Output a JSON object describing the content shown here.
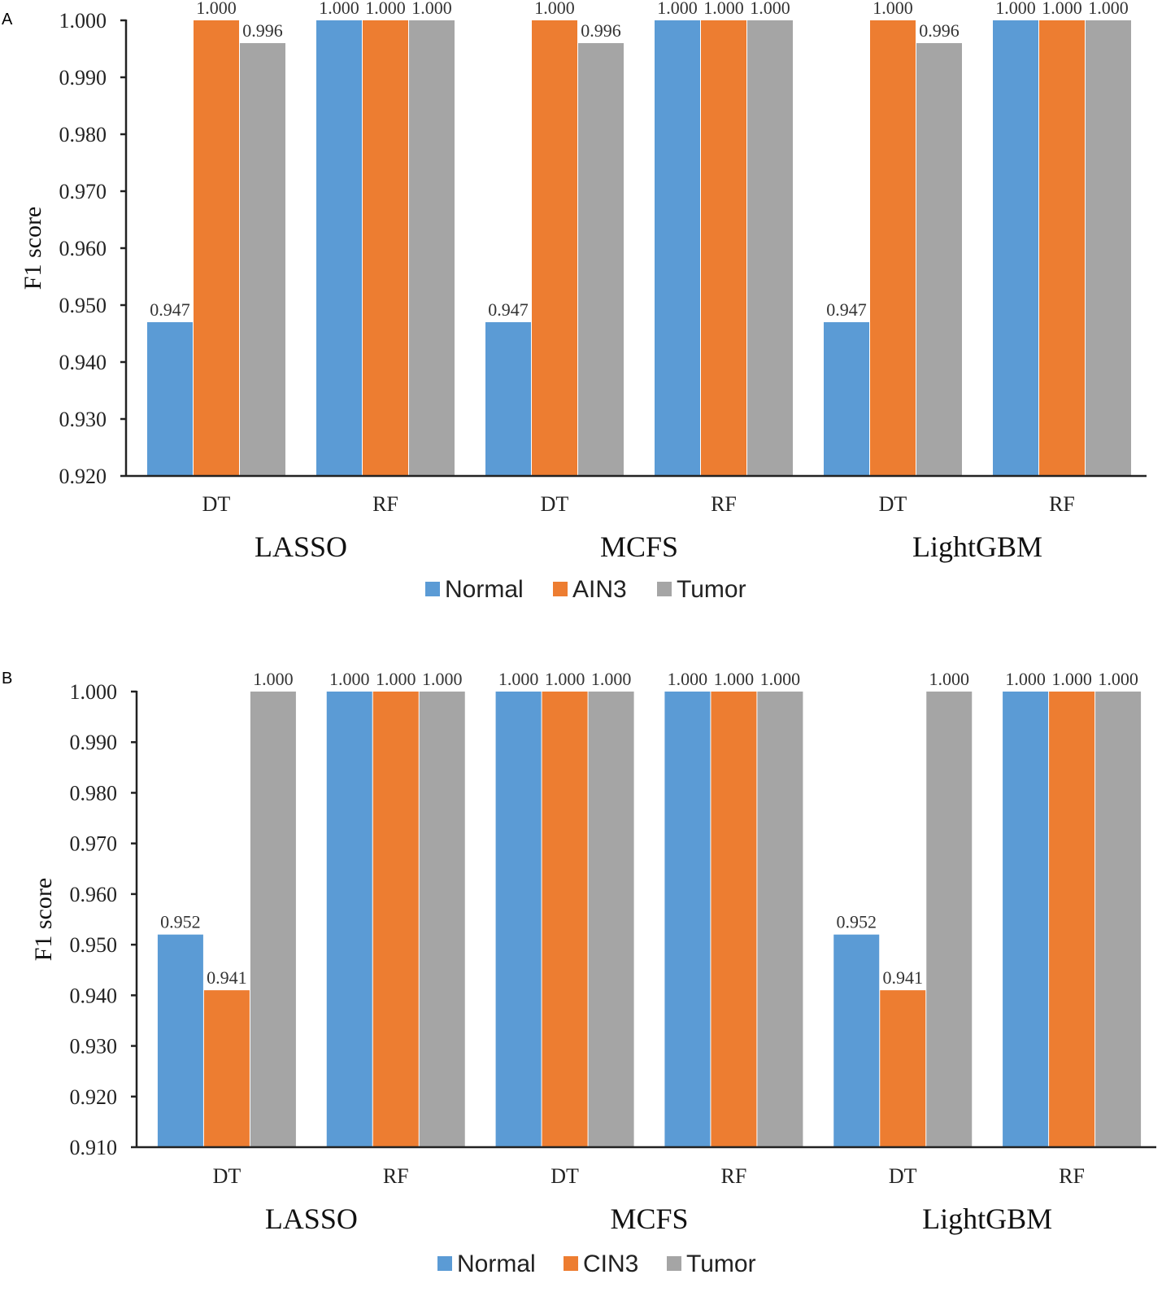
{
  "chart_data": [
    {
      "type": "bar",
      "panel": "A",
      "ylabel": "F1 score",
      "ylim": [
        0.92,
        1.0
      ],
      "yticks": [
        "0.920",
        "0.930",
        "0.940",
        "0.950",
        "0.960",
        "0.970",
        "0.980",
        "0.990",
        "1.000"
      ],
      "groups": [
        "LASSO",
        "MCFS",
        "LightGBM"
      ],
      "categories": [
        "DT",
        "RF",
        "DT",
        "RF",
        "DT",
        "RF"
      ],
      "series": [
        {
          "name": "Normal",
          "color": "#5B9BD5",
          "values": [
            0.947,
            1.0,
            0.947,
            1.0,
            0.947,
            1.0
          ],
          "labels": [
            "0.947",
            "1.000",
            "0.947",
            "1.000",
            "0.947",
            "1.000"
          ]
        },
        {
          "name": "AIN3",
          "color": "#ED7D31",
          "values": [
            1.0,
            1.0,
            1.0,
            1.0,
            1.0,
            1.0
          ],
          "labels": [
            "1.000",
            "1.000",
            "1.000",
            "1.000",
            "1.000",
            "1.000"
          ]
        },
        {
          "name": "Tumor",
          "color": "#A5A5A5",
          "values": [
            0.996,
            1.0,
            0.996,
            1.0,
            0.996,
            1.0
          ],
          "labels": [
            "0.996",
            "1.000",
            "0.996",
            "1.000",
            "0.996",
            "1.000"
          ]
        }
      ],
      "legend": [
        "Normal",
        "AIN3",
        "Tumor"
      ]
    },
    {
      "type": "bar",
      "panel": "B",
      "ylabel": "F1 score",
      "ylim": [
        0.91,
        1.0
      ],
      "yticks": [
        "0.910",
        "0.920",
        "0.930",
        "0.940",
        "0.950",
        "0.960",
        "0.970",
        "0.980",
        "0.990",
        "1.000"
      ],
      "groups": [
        "LASSO",
        "MCFS",
        "LightGBM"
      ],
      "categories": [
        "DT",
        "RF",
        "DT",
        "RF",
        "DT",
        "RF"
      ],
      "series": [
        {
          "name": "Normal",
          "color": "#5B9BD5",
          "values": [
            0.952,
            1.0,
            1.0,
            1.0,
            0.952,
            1.0
          ],
          "labels": [
            "0.952",
            "1.000",
            "1.000",
            "1.000",
            "0.952",
            "1.000"
          ]
        },
        {
          "name": "CIN3",
          "color": "#ED7D31",
          "values": [
            0.941,
            1.0,
            1.0,
            1.0,
            0.941,
            1.0
          ],
          "labels": [
            "0.941",
            "1.000",
            "1.000",
            "1.000",
            "0.941",
            "1.000"
          ]
        },
        {
          "name": "Tumor",
          "color": "#A5A5A5",
          "values": [
            1.0,
            1.0,
            1.0,
            1.0,
            1.0,
            1.0
          ],
          "labels": [
            "1.000",
            "1.000",
            "1.000",
            "1.000",
            "1.000",
            "1.000"
          ]
        }
      ],
      "legend": [
        "Normal",
        "CIN3",
        "Tumor"
      ]
    }
  ]
}
